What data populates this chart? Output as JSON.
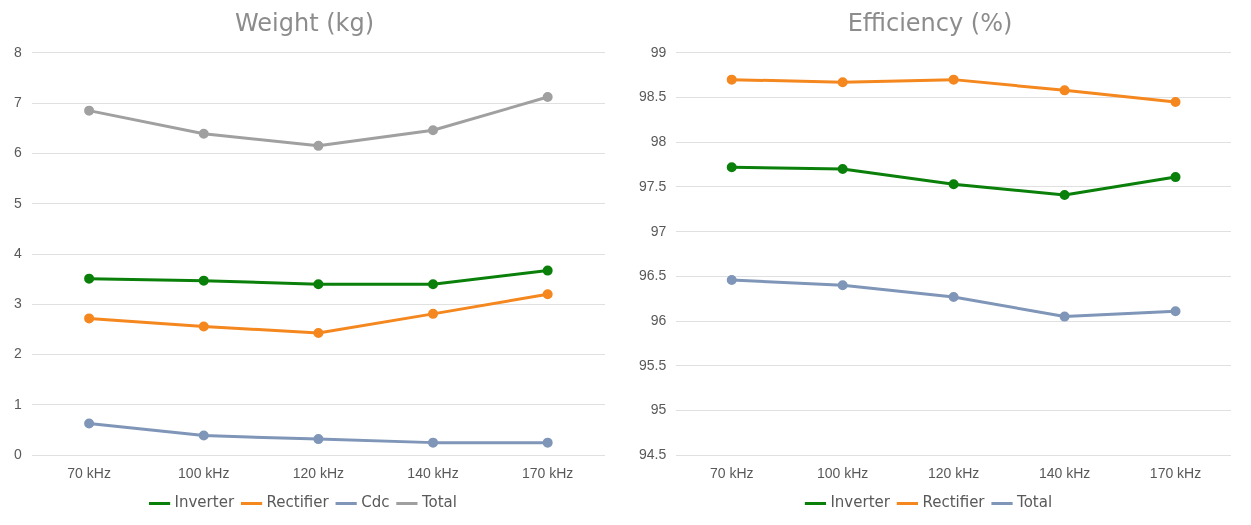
{
  "chart_data": [
    {
      "type": "line",
      "title": "Weight (kg)",
      "categories": [
        "70 kHz",
        "100 kHz",
        "120 kHz",
        "140 kHz",
        "170 kHz"
      ],
      "series": [
        {
          "name": "Inverter",
          "color": "#0a800a",
          "values": [
            3.51,
            3.47,
            3.4,
            3.4,
            3.67
          ]
        },
        {
          "name": "Rectifier",
          "color": "#f5871f",
          "values": [
            2.72,
            2.56,
            2.43,
            2.81,
            3.2
          ]
        },
        {
          "name": "Cdc",
          "color": "#7f96b8",
          "values": [
            0.63,
            0.39,
            0.32,
            0.25,
            0.25
          ]
        },
        {
          "name": "Total",
          "color": "#a0a0a0",
          "values": [
            6.85,
            6.39,
            6.15,
            6.46,
            7.12
          ]
        }
      ],
      "ylim": [
        0,
        8
      ],
      "yticks": [
        0,
        1,
        2,
        3,
        4,
        5,
        6,
        7,
        8
      ],
      "grid": "y",
      "legend": "bottom",
      "marker": "circle",
      "line_style": "solid"
    },
    {
      "type": "line",
      "title": "Efficiency (%)",
      "categories": [
        "70 kHz",
        "100 kHz",
        "120 kHz",
        "140 kHz",
        "170 kHz"
      ],
      "series": [
        {
          "name": "Inverter",
          "color": "#0a800a",
          "values": [
            97.72,
            97.7,
            97.53,
            97.41,
            97.61
          ]
        },
        {
          "name": "Rectifier",
          "color": "#f5871f",
          "values": [
            98.7,
            98.67,
            98.7,
            98.58,
            98.45
          ]
        },
        {
          "name": "Total",
          "color": "#7f96b8",
          "values": [
            96.46,
            96.4,
            96.27,
            96.05,
            96.11
          ]
        }
      ],
      "ylim": [
        94.5,
        99
      ],
      "yticks": [
        94.5,
        95,
        95.5,
        96,
        96.5,
        97,
        97.5,
        98,
        98.5,
        99
      ],
      "grid": "y",
      "legend": "bottom",
      "marker": "circle",
      "line_style": "solid"
    }
  ]
}
